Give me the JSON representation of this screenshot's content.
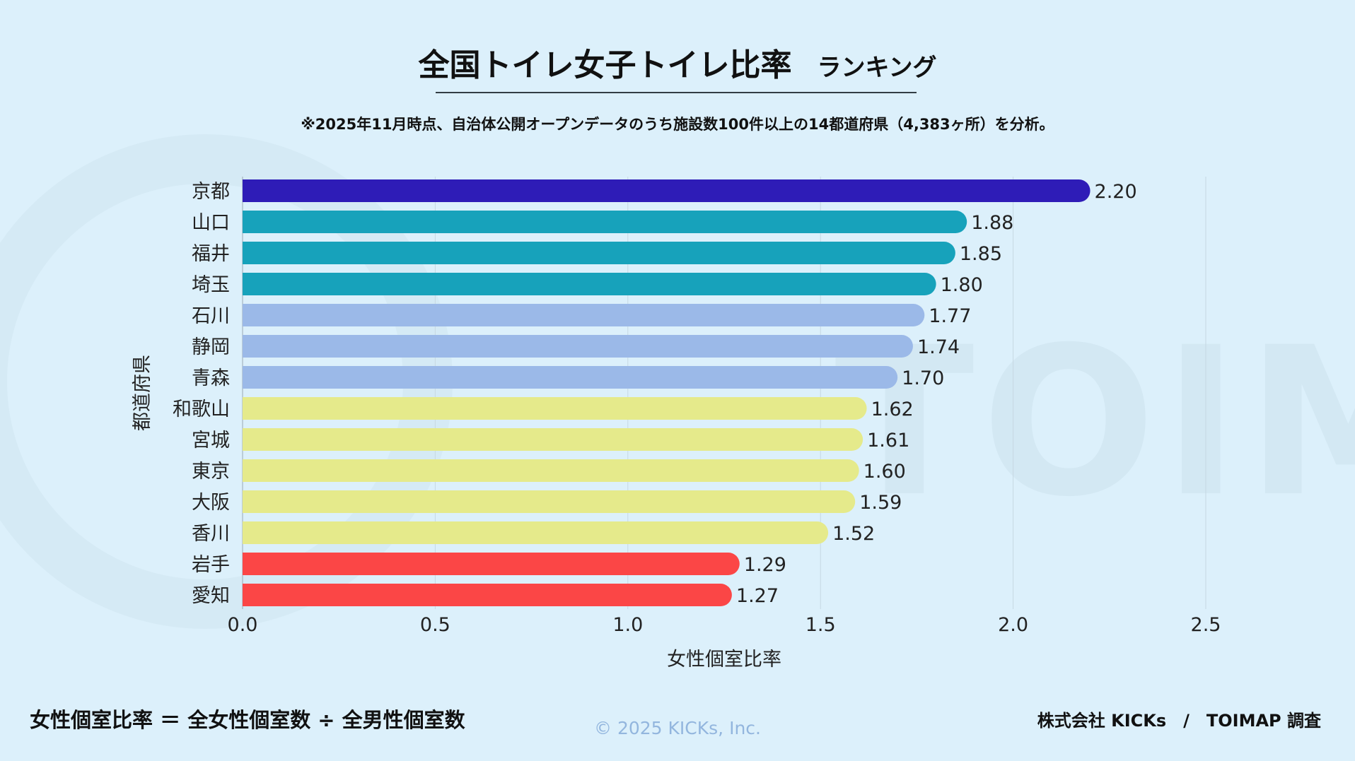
{
  "header": {
    "title": "全国トイレ女子トイレ比率",
    "title_suffix": "ランキング",
    "note": "※2025年11月時点、自治体公開オープンデータのうち施設数100件以上の14都道府県（4,383ヶ所）を分析。"
  },
  "chart_data": {
    "type": "bar",
    "orientation": "horizontal",
    "xlabel": "女性個室比率",
    "ylabel": "都道府県",
    "xlim": [
      0,
      2.5
    ],
    "xticks": [
      "0.0",
      "0.5",
      "1.0",
      "1.5",
      "2.0",
      "2.5"
    ],
    "grid": "vertical",
    "categories": [
      "京都",
      "山口",
      "福井",
      "埼玉",
      "石川",
      "静岡",
      "青森",
      "和歌山",
      "宮城",
      "東京",
      "大阪",
      "香川",
      "岩手",
      "愛知"
    ],
    "values": [
      2.2,
      1.88,
      1.85,
      1.8,
      1.77,
      1.74,
      1.7,
      1.62,
      1.61,
      1.6,
      1.59,
      1.52,
      1.29,
      1.27
    ],
    "labels": [
      "2.20",
      "1.88",
      "1.85",
      "1.80",
      "1.77",
      "1.74",
      "1.70",
      "1.62",
      "1.61",
      "1.60",
      "1.59",
      "1.52",
      "1.29",
      "1.27"
    ],
    "colors": [
      "#2e1cb7",
      "#17a2bb",
      "#17a2bb",
      "#17a2bb",
      "#9bb9e8",
      "#9bb9e8",
      "#9bb9e8",
      "#e5ea8b",
      "#e5ea8b",
      "#e5ea8b",
      "#e5ea8b",
      "#e5ea8b",
      "#fb4646",
      "#fb4646"
    ]
  },
  "footer": {
    "formula": "女性個室比率 ＝ 全女性個室数 ÷ 全男性個室数",
    "copyright": "© 2025 KICKs, Inc.",
    "credit": "株式会社 KICKs　/　TOIMAP 調査"
  },
  "watermark": "TOIMAP"
}
